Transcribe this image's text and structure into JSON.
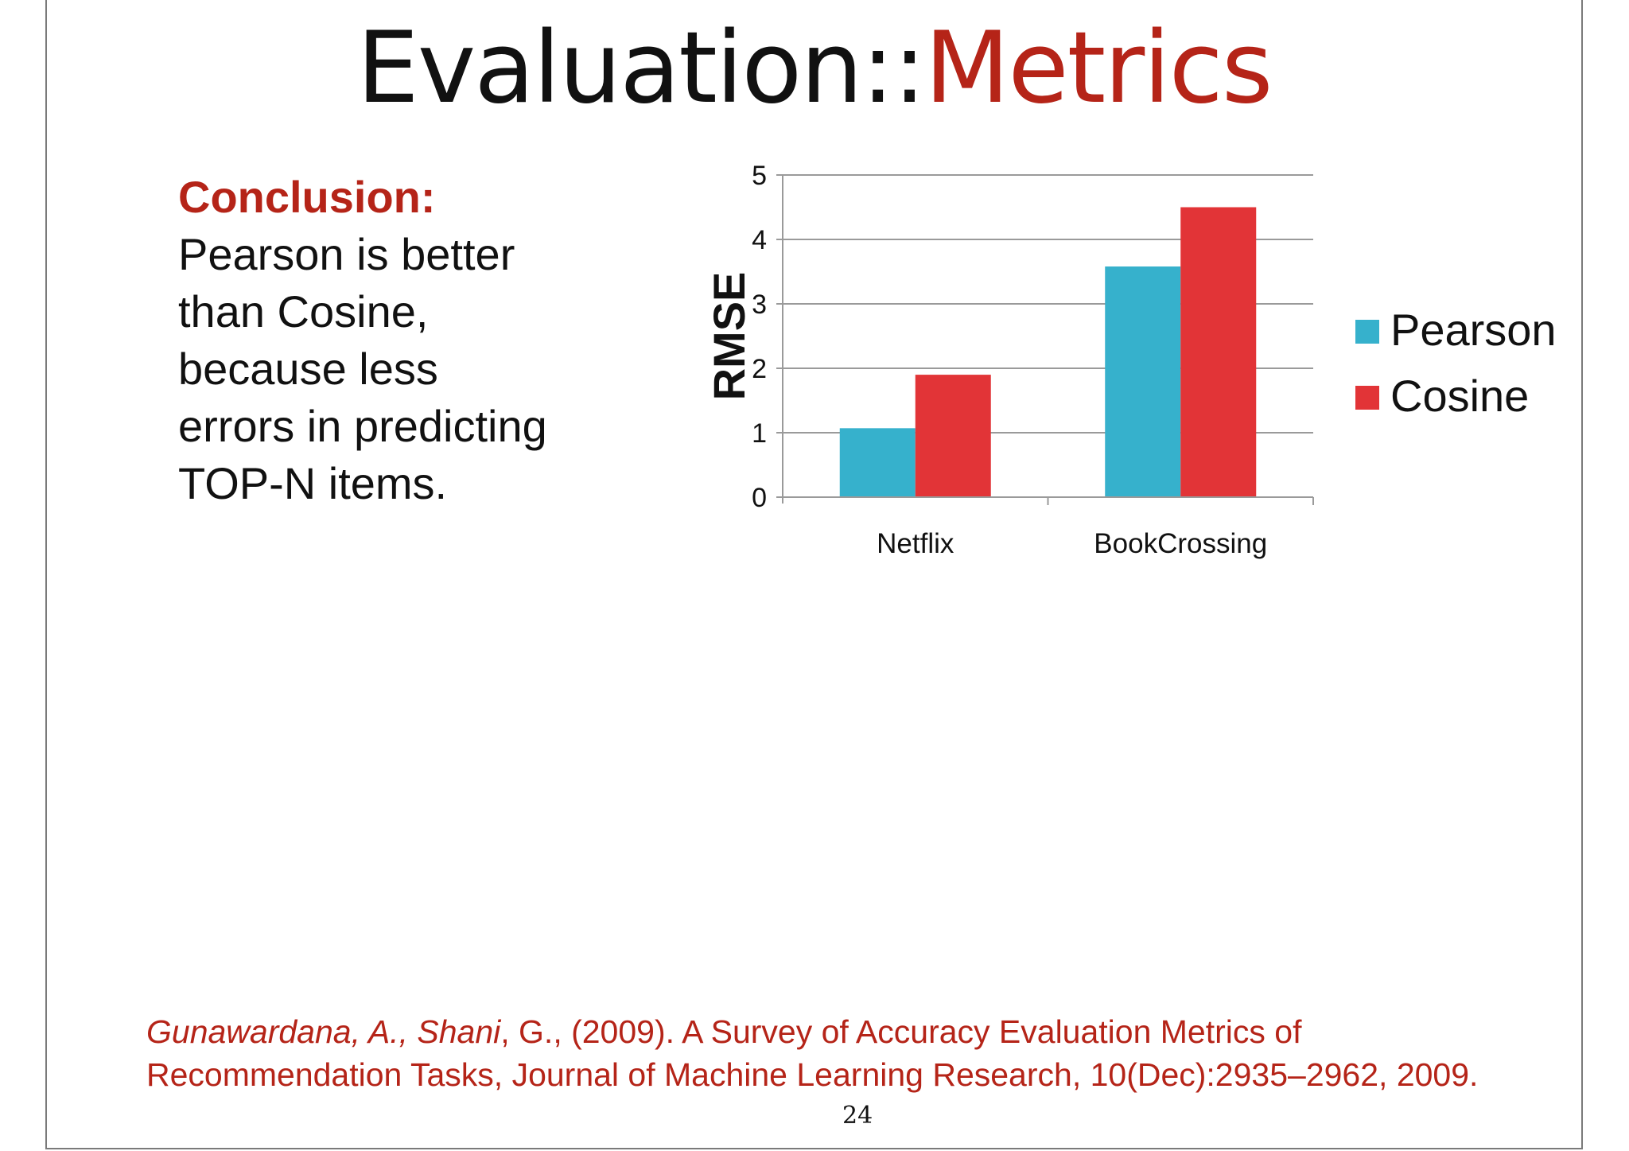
{
  "slide": {
    "title_part1": "Evaluation::",
    "title_part2": "Metrics",
    "conclusion_heading": "Conclusion:",
    "conclusion_lines": [
      "Pearson is better",
      "than Cosine,",
      "because less",
      "errors in predicting",
      "TOP-N items."
    ],
    "citation": {
      "author1": "Gunawardana, A.,",
      "author2": "Shani",
      "rest": ", G., (2009). A Survey of Accuracy Evaluation Metrics of Recommendation Tasks, Journal of Machine Learning Research, 10(Dec):2935–2962, 2009."
    },
    "page_number": "24"
  },
  "chart_data": {
    "type": "bar",
    "categories": [
      "Netflix",
      "BookCrossing"
    ],
    "series": [
      {
        "name": "Pearson",
        "values": [
          1.07,
          3.58
        ],
        "color": "#36b1cc"
      },
      {
        "name": "Cosine",
        "values": [
          1.9,
          4.5
        ],
        "color": "#e23437"
      }
    ],
    "title": "",
    "xlabel": "",
    "ylabel": "RMSE",
    "ylim": [
      0,
      5
    ],
    "yticks": [
      "0",
      "1",
      "2",
      "3",
      "4",
      "5"
    ],
    "grid": true,
    "legend_position": "right"
  }
}
